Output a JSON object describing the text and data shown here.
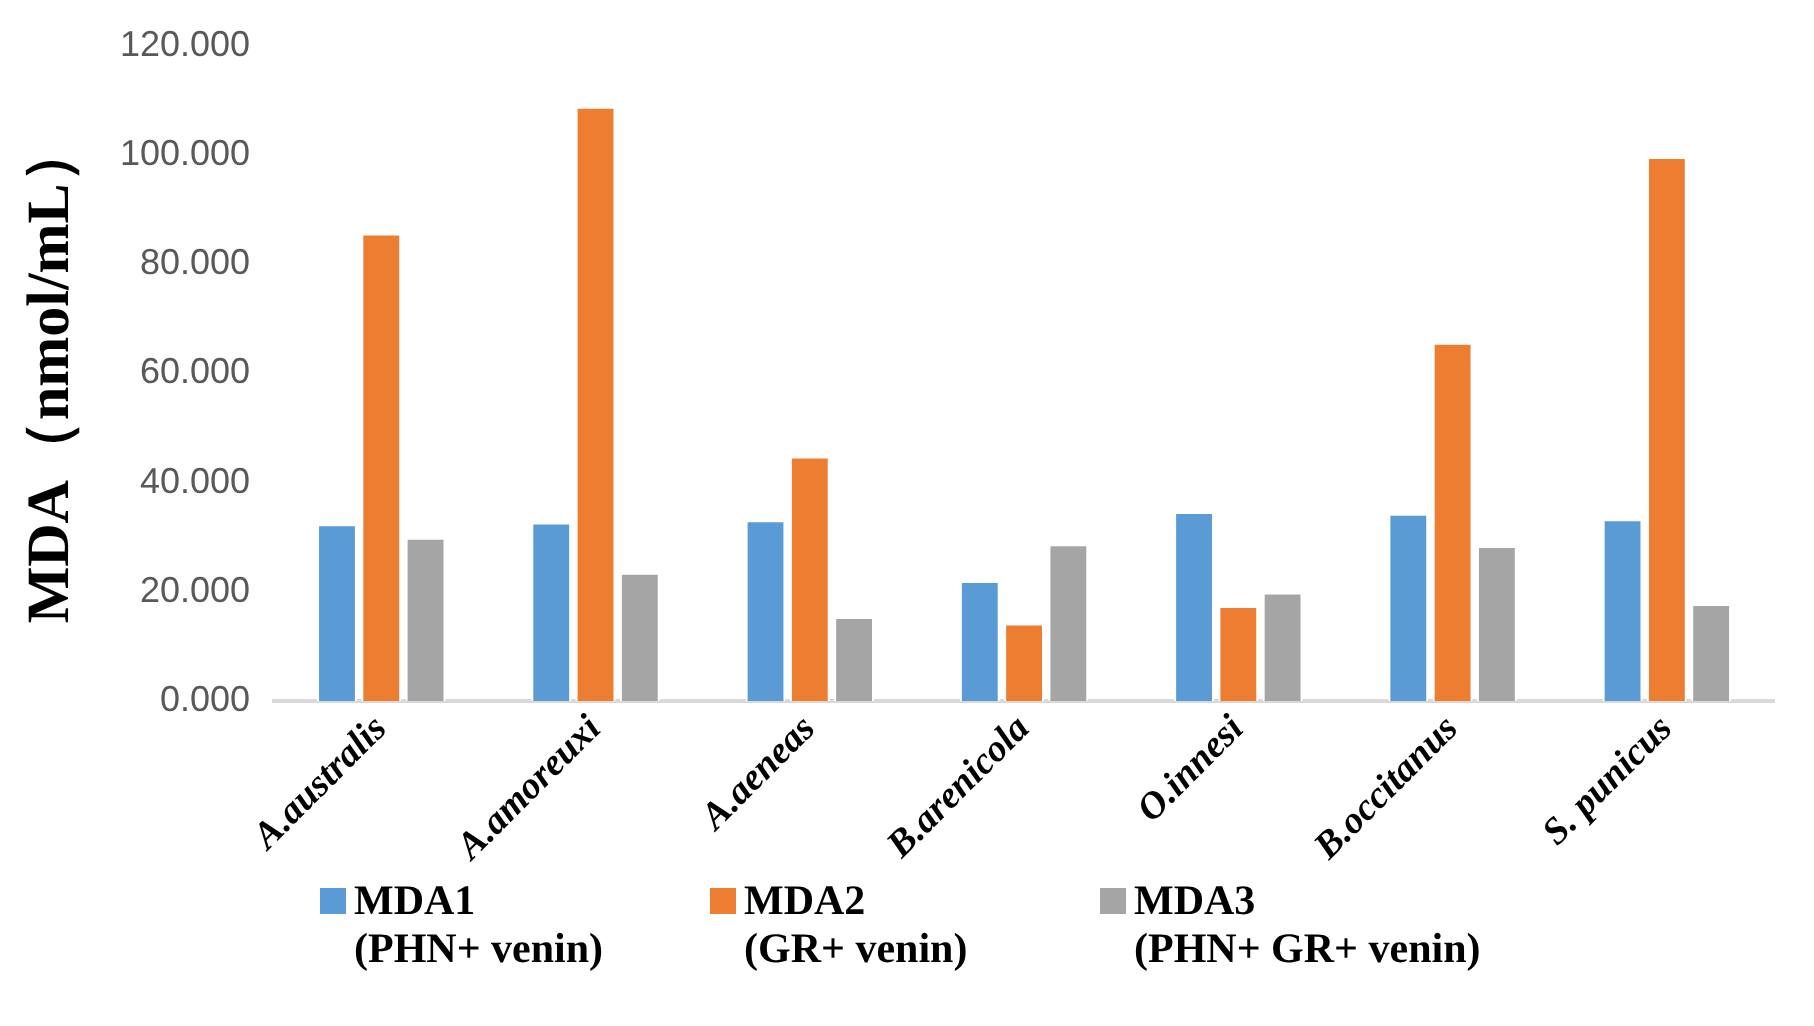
{
  "chart_data": {
    "type": "bar",
    "ylabel": "MDA（nmol/mL）",
    "categories": [
      "A.australis",
      "A.amoreuxi",
      "A.aeneas",
      "B.arenicola",
      "O.innesi",
      "B.occitanus",
      "S. punicus"
    ],
    "series": [
      {
        "name": "MDA1\n(PHN+ venin)",
        "color": "#5b9bd5",
        "values": [
          32.4,
          32.7,
          33.1,
          22.0,
          34.6,
          34.3,
          33.3
        ]
      },
      {
        "name": "MDA2\n(GR+ venin)",
        "color": "#ed7d31",
        "values": [
          85.6,
          108.8,
          44.8,
          14.2,
          17.4,
          65.6,
          99.6
        ]
      },
      {
        "name": "MDA3\n(PHN+ GR+ venin)",
        "color": "#a5a5a5",
        "values": [
          29.9,
          23.5,
          15.4,
          28.7,
          19.9,
          28.4,
          17.8
        ]
      }
    ],
    "ylim": [
      0,
      120
    ],
    "yticks": [
      {
        "value": 0,
        "label": "0.000"
      },
      {
        "value": 20,
        "label": "20.000"
      },
      {
        "value": 40,
        "label": "40.000"
      },
      {
        "value": 60,
        "label": "60.000"
      },
      {
        "value": 80,
        "label": "80.000"
      },
      {
        "value": 100,
        "label": "100.000"
      },
      {
        "value": 120,
        "label": "120.000"
      }
    ],
    "grid": false,
    "legend": "bottom"
  }
}
